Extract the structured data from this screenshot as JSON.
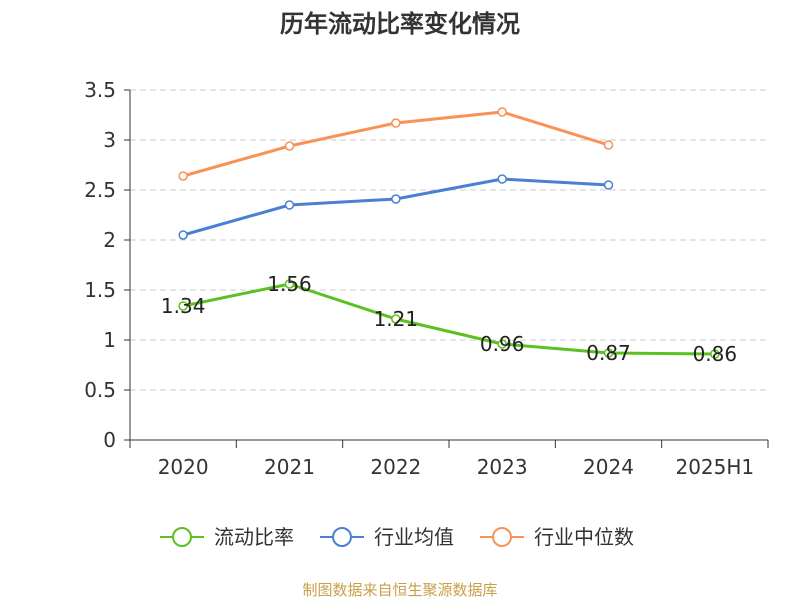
{
  "chart_data": {
    "type": "line",
    "title": "历年流动比率变化情况",
    "categories": [
      "2020",
      "2021",
      "2022",
      "2023",
      "2024",
      "2025H1"
    ],
    "ylim": [
      0,
      3.5
    ],
    "yticks": [
      "0",
      "0.5",
      "1",
      "1.5",
      "2",
      "2.5",
      "3",
      "3.5"
    ],
    "grid": true,
    "legend_position": "bottom",
    "series": [
      {
        "name": "流动比率",
        "color": "#5cc021",
        "values": [
          1.34,
          1.56,
          1.21,
          0.96,
          0.87,
          0.86
        ],
        "labels": [
          "1.34",
          "1.56",
          "1.21",
          "0.96",
          "0.87",
          "0.86"
        ]
      },
      {
        "name": "行业均值",
        "color": "#4a7fd6",
        "values": [
          2.05,
          2.35,
          2.41,
          2.61,
          2.55,
          null
        ]
      },
      {
        "name": "行业中位数",
        "color": "#f69355",
        "values": [
          2.64,
          2.94,
          3.17,
          3.28,
          2.95,
          null
        ]
      }
    ]
  },
  "source": "制图数据来自恒生聚源数据库"
}
